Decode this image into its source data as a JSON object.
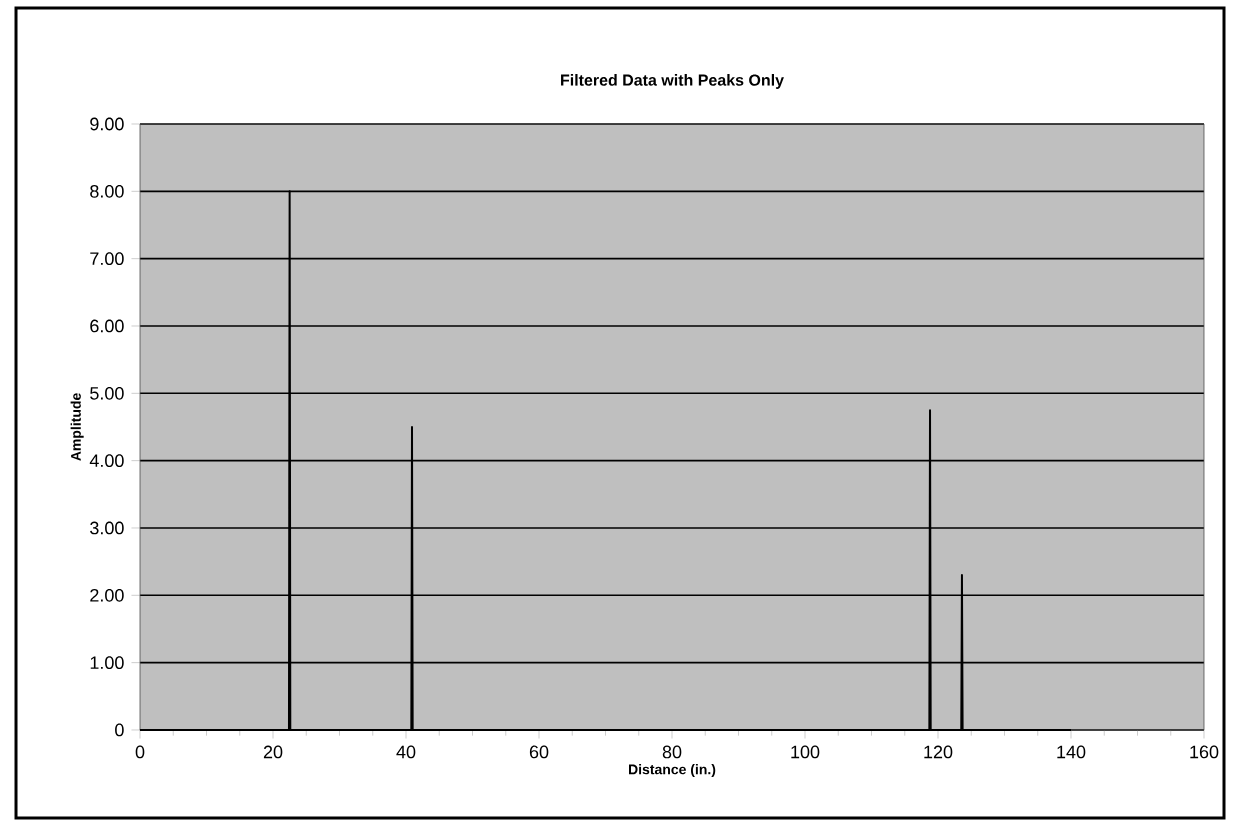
{
  "chart_data": {
    "type": "line",
    "title": "Filtered Data with Peaks Only",
    "xlabel": "Distance (in.)",
    "ylabel": "Amplitude",
    "x": [
      0,
      22.4,
      22.5,
      22.6,
      40.8,
      40.9,
      41.0,
      118.7,
      118.8,
      118.9,
      123.5,
      123.6,
      123.7,
      140
    ],
    "series": [
      {
        "color": "#000000",
        "values": [
          0,
          0,
          8.0,
          0,
          0,
          4.5,
          0,
          0,
          4.75,
          0,
          0,
          2.3,
          0,
          0
        ]
      }
    ],
    "xlim": [
      0,
      160
    ],
    "xticks": [
      0,
      20,
      40,
      60,
      80,
      100,
      120,
      140,
      160
    ],
    "ylim": [
      0,
      9
    ],
    "yticks": [
      {
        "value": 0,
        "label": "0"
      },
      {
        "value": 1,
        "label": "1.00"
      },
      {
        "value": 2,
        "label": "2.00"
      },
      {
        "value": 3,
        "label": "3.00"
      },
      {
        "value": 4,
        "label": "4.00"
      },
      {
        "value": 5,
        "label": "5.00"
      },
      {
        "value": 6,
        "label": "6.00"
      },
      {
        "value": 7,
        "label": "7.00"
      },
      {
        "value": 8,
        "label": "8.00"
      },
      {
        "value": 9,
        "label": "9.00"
      }
    ],
    "grid": "y",
    "marker": "none",
    "line_style": "solid"
  }
}
